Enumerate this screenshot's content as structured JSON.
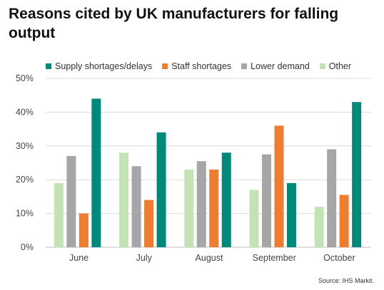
{
  "title": "Reasons cited by UK manufacturers for falling output",
  "source": "Source: IHS Markit.",
  "chart_data": {
    "type": "bar",
    "categories": [
      "June",
      "July",
      "August",
      "September",
      "October"
    ],
    "series": [
      {
        "name": "Other",
        "color": "#c4e3b5",
        "values": [
          19,
          28,
          23,
          17,
          12
        ]
      },
      {
        "name": "Lower demand",
        "color": "#a6a6a6",
        "values": [
          27,
          24,
          25.5,
          27.5,
          29
        ]
      },
      {
        "name": "Staff shortages",
        "color": "#ed7d31",
        "values": [
          10,
          14,
          23,
          36,
          15.5
        ]
      },
      {
        "name": "Supply shortages/delays",
        "color": "#00897b",
        "values": [
          44,
          34,
          28,
          19,
          43
        ]
      }
    ],
    "legend_order": [
      "Supply shortages/delays",
      "Staff shortages",
      "Lower demand",
      "Other"
    ],
    "ylim": [
      0,
      50
    ],
    "yticks": [
      "0%",
      "10%",
      "20%",
      "30%",
      "40%",
      "50%"
    ],
    "grid": true,
    "legend_position": "top"
  }
}
